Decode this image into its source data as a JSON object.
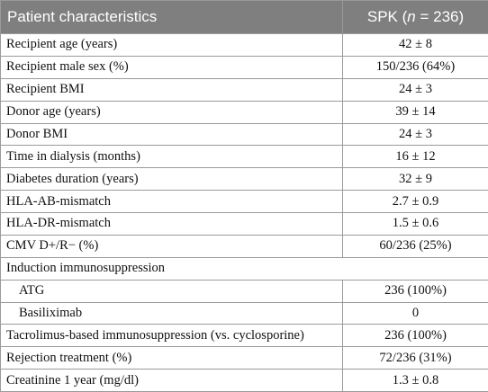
{
  "table": {
    "header": {
      "col1": "Patient characteristics",
      "col2_prefix": "SPK (",
      "col2_var": "n",
      "col2_suffix": " = 236)"
    },
    "rows": [
      {
        "label": "Recipient age (years)",
        "value": "42 ± 8"
      },
      {
        "label": "Recipient male sex (%)",
        "value": "150/236 (64%)"
      },
      {
        "label": "Recipient BMI",
        "value": "24 ± 3"
      },
      {
        "label": "Donor age (years)",
        "value": "39 ± 14"
      },
      {
        "label": "Donor BMI",
        "value": "24 ± 3"
      },
      {
        "label": "Time in dialysis (months)",
        "value": "16 ± 12"
      },
      {
        "label": "Diabetes duration (years)",
        "value": "32 ± 9"
      },
      {
        "label": "HLA-AB-mismatch",
        "value": "2.7 ± 0.9"
      },
      {
        "label": "HLA-DR-mismatch",
        "value": "1.5 ± 0.6"
      },
      {
        "label": "CMV D+/R− (%)",
        "value": "60/236 (25%)"
      },
      {
        "label": "Induction immunosuppression",
        "value": ""
      },
      {
        "label": "ATG",
        "value": "236 (100%)"
      },
      {
        "label": "Basiliximab",
        "value": "0"
      },
      {
        "label": "Tacrolimus-based immunosuppression (vs. cyclosporine)",
        "value": "236 (100%)"
      },
      {
        "label": "Rejection treatment (%)",
        "value": "72/236 (31%)"
      },
      {
        "label": "Creatinine 1 year (mg/dl)",
        "value": "1.3 ± 0.8"
      }
    ]
  }
}
